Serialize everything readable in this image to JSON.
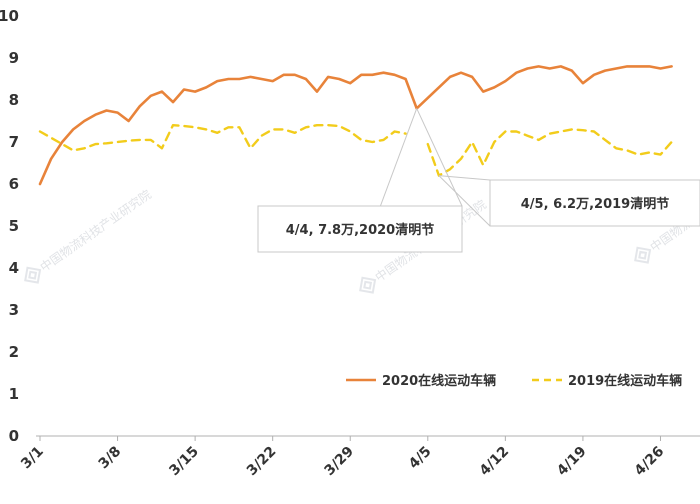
{
  "chart_data": {
    "type": "line",
    "ylim": [
      0,
      10
    ],
    "yticks": [
      0,
      1,
      2,
      3,
      4,
      5,
      6,
      7,
      8,
      9,
      10
    ],
    "grid": false,
    "legend_position": "bottom-right",
    "x_tick_labels": [
      {
        "label": "3/1",
        "index": 0
      },
      {
        "label": "3/8",
        "index": 7
      },
      {
        "label": "3/15",
        "index": 14
      },
      {
        "label": "3/22",
        "index": 21
      },
      {
        "label": "3/29",
        "index": 28
      },
      {
        "label": "4/5",
        "index": 35
      },
      {
        "label": "4/12",
        "index": 42
      },
      {
        "label": "4/19",
        "index": 49
      },
      {
        "label": "4/26",
        "index": 56
      }
    ],
    "series": [
      {
        "name": "2020在线运动车辆",
        "color": "#e8833a",
        "style": "solid",
        "start_index": 0,
        "values": [
          6.0,
          6.6,
          7.0,
          7.3,
          7.5,
          7.65,
          7.75,
          7.7,
          7.5,
          7.85,
          8.1,
          8.2,
          7.95,
          8.25,
          8.2,
          8.3,
          8.45,
          8.5,
          8.5,
          8.55,
          8.5,
          8.45,
          8.6,
          8.6,
          8.5,
          8.2,
          8.55,
          8.5,
          8.4,
          8.6,
          8.6,
          8.65,
          8.6,
          8.5,
          7.8,
          8.05,
          8.3,
          8.55,
          8.65,
          8.55,
          8.2,
          8.3,
          8.45,
          8.65,
          8.75,
          8.8,
          8.75,
          8.8,
          8.7,
          8.4,
          8.6,
          8.7,
          8.75,
          8.8,
          8.8,
          8.8,
          8.75,
          8.8
        ]
      },
      {
        "name": "2019在线运动车辆",
        "color": "#f2cc1b",
        "style": "dashed",
        "start_index": 0,
        "values": [
          7.25,
          7.1,
          6.95,
          6.8,
          6.85,
          6.95,
          6.97,
          7.0,
          7.03,
          7.05,
          7.05,
          6.85,
          7.4,
          7.38,
          7.35,
          7.3,
          7.22,
          7.35,
          7.35,
          6.85,
          7.15,
          7.3,
          7.3,
          7.22,
          7.35,
          7.4,
          7.4,
          7.38,
          7.25,
          7.05,
          7.0,
          7.05,
          7.25,
          7.2,
          null,
          6.95,
          6.2,
          6.35,
          6.6,
          7.0,
          6.45,
          7.0,
          7.25,
          7.25,
          7.15,
          7.05,
          7.2,
          7.25,
          7.3,
          7.28,
          7.25,
          7.05,
          6.85,
          6.8,
          6.7,
          6.75,
          6.7,
          7.0
        ]
      }
    ],
    "annotations": [
      {
        "text": "4/4, 7.8万,2020清明节",
        "series_index": 0,
        "point_index": 34
      },
      {
        "text": "4/5, 6.2万,2019清明节",
        "series_index": 1,
        "point_index": 36
      }
    ],
    "watermark": "中国物流科技产业研究院"
  }
}
